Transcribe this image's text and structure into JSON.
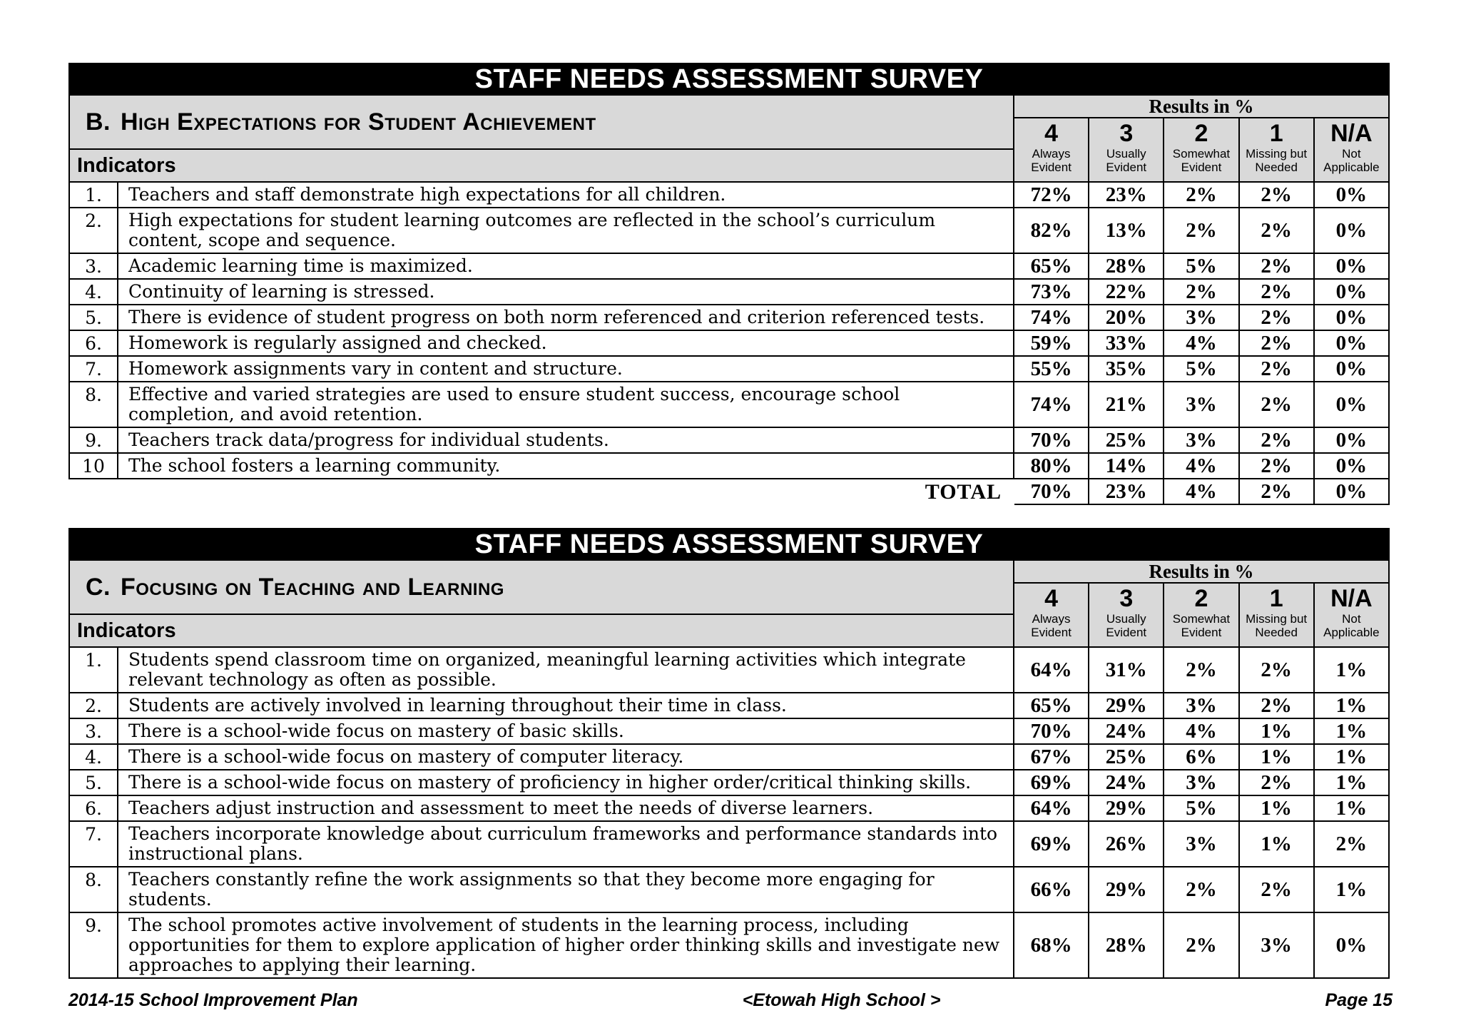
{
  "colors": {
    "header_gray": "#d9d9d9",
    "title_bar_bg": "#000000",
    "title_text": "#ffffff",
    "border": "#000000"
  },
  "survey_title": "STAFF NEEDS ASSESSMENT SURVEY",
  "results_header": "Results in %",
  "indicators_label": "Indicators",
  "columns": [
    {
      "num": "4",
      "label": "Always Evident"
    },
    {
      "num": "3",
      "label": "Usually Evident"
    },
    {
      "num": "2",
      "label": "Somewhat Evident"
    },
    {
      "num": "1",
      "label": "Missing but Needed"
    },
    {
      "num": "N/A",
      "label": "Not Applicable"
    }
  ],
  "tables": [
    {
      "section_letter": "B.",
      "section_title": "High Expectations for Student Achievement",
      "rows": [
        {
          "num": "1.",
          "text": "Teachers and staff demonstrate high expectations for all children.",
          "values": [
            "72%",
            "23%",
            "2%",
            "2%",
            "0%"
          ]
        },
        {
          "num": "2.",
          "text": "High expectations for student learning outcomes are reflected in the school’s curriculum content, scope and sequence.",
          "values": [
            "82%",
            "13%",
            "2%",
            "2%",
            "0%"
          ]
        },
        {
          "num": "3.",
          "text": "Academic learning time is maximized.",
          "values": [
            "65%",
            "28%",
            "5%",
            "2%",
            "0%"
          ]
        },
        {
          "num": "4.",
          "text": "Continuity of learning is stressed.",
          "values": [
            "73%",
            "22%",
            "2%",
            "2%",
            "0%"
          ]
        },
        {
          "num": "5.",
          "text": "There is evidence of student progress on both norm referenced and criterion referenced tests.",
          "values": [
            "74%",
            "20%",
            "3%",
            "2%",
            "0%"
          ]
        },
        {
          "num": "6.",
          "text": "Homework is regularly assigned and checked.",
          "values": [
            "59%",
            "33%",
            "4%",
            "2%",
            "0%"
          ]
        },
        {
          "num": "7.",
          "text": "Homework assignments vary in content and structure.",
          "values": [
            "55%",
            "35%",
            "5%",
            "2%",
            "0%"
          ]
        },
        {
          "num": "8.",
          "text": "Effective and varied strategies are used to ensure student success, encourage school completion, and avoid retention.",
          "values": [
            "74%",
            "21%",
            "3%",
            "2%",
            "0%"
          ]
        },
        {
          "num": "9.",
          "text": "Teachers track data/progress for individual students.",
          "values": [
            "70%",
            "25%",
            "3%",
            "2%",
            "0%"
          ]
        },
        {
          "num": "10",
          "text": "The school fosters a learning community.",
          "values": [
            "80%",
            "14%",
            "4%",
            "2%",
            "0%"
          ]
        }
      ],
      "total": {
        "label": "TOTAL",
        "values": [
          "70%",
          "23%",
          "4%",
          "2%",
          "0%"
        ]
      }
    },
    {
      "section_letter": "C.",
      "section_title": "Focusing on Teaching and Learning",
      "rows": [
        {
          "num": "1.",
          "text": "Students spend classroom time on organized, meaningful learning activities which integrate relevant technology as often as possible.",
          "values": [
            "64%",
            "31%",
            "2%",
            "2%",
            "1%"
          ]
        },
        {
          "num": "2.",
          "text": "Students are actively involved in learning throughout their time in class.",
          "values": [
            "65%",
            "29%",
            "3%",
            "2%",
            "1%"
          ]
        },
        {
          "num": "3.",
          "text": "There is a school-wide focus on mastery of basic skills.",
          "values": [
            "70%",
            "24%",
            "4%",
            "1%",
            "1%"
          ]
        },
        {
          "num": "4.",
          "text": "There is a school-wide focus on mastery of computer literacy.",
          "values": [
            "67%",
            "25%",
            "6%",
            "1%",
            "1%"
          ]
        },
        {
          "num": "5.",
          "text": "There is a school-wide focus on mastery of proficiency in higher order/critical thinking skills.",
          "values": [
            "69%",
            "24%",
            "3%",
            "2%",
            "1%"
          ]
        },
        {
          "num": "6.",
          "text": "Teachers adjust instruction and assessment to meet the needs of diverse learners.",
          "values": [
            "64%",
            "29%",
            "5%",
            "1%",
            "1%"
          ]
        },
        {
          "num": "7.",
          "text": "Teachers incorporate knowledge about curriculum frameworks and performance standards into instructional plans.",
          "values": [
            "69%",
            "26%",
            "3%",
            "1%",
            "2%"
          ]
        },
        {
          "num": "8.",
          "text": "Teachers constantly refine the work assignments so that they become more engaging for students.",
          "values": [
            "66%",
            "29%",
            "2%",
            "2%",
            "1%"
          ]
        },
        {
          "num": "9.",
          "text": "The school promotes active involvement of students in the learning process, including opportunities for them to explore application of higher order thinking skills and investigate new approaches to applying their learning.",
          "values": [
            "68%",
            "28%",
            "2%",
            "3%",
            "0%"
          ]
        }
      ]
    }
  ],
  "footer": {
    "left": "2014-15 School Improvement Plan",
    "center": "<Etowah High School  >",
    "right": "Page 15"
  }
}
